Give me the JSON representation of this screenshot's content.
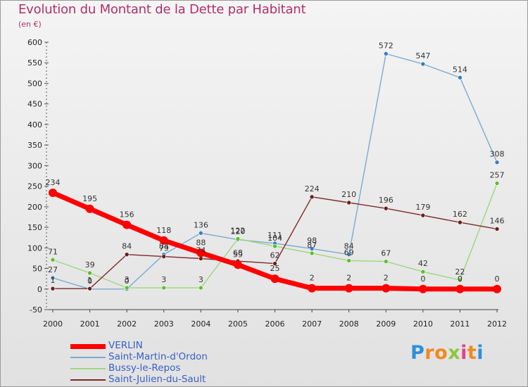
{
  "title": "Evolution du Montant de la Dette par Habitant",
  "unit": "(en €)",
  "logo": {
    "text": "Proxiti",
    "letters": [
      {
        "ch": "P",
        "color": "#2e8fd8"
      },
      {
        "ch": "r",
        "color": "#f08a1e"
      },
      {
        "ch": "o",
        "color": "#f08a1e"
      },
      {
        "ch": "x",
        "color": "#8cc63f"
      },
      {
        "ch": "i",
        "color": "#e83e8c"
      },
      {
        "ch": "t",
        "color": "#f08a1e"
      },
      {
        "ch": "i",
        "color": "#2e8fd8"
      }
    ]
  },
  "chart_data": {
    "type": "line",
    "x": [
      "2000",
      "2001",
      "2002",
      "2003",
      "2004",
      "2005",
      "2006",
      "2007",
      "2008",
      "2009",
      "2010",
      "2011",
      "2012"
    ],
    "ylim": [
      -50,
      600
    ],
    "yticks": [
      "-50",
      "0",
      "50",
      "100",
      "150",
      "200",
      "250",
      "300",
      "350",
      "400",
      "450",
      "500",
      "550",
      "600"
    ],
    "grid": false,
    "legend_position": "bottom-left",
    "series": [
      {
        "name": "VERLIN",
        "color": "#ff0000",
        "point_color": "#ff0000",
        "thick": true,
        "values": [
          234,
          195,
          156,
          118,
          88,
          59,
          25,
          2,
          2,
          2,
          0,
          0,
          0
        ],
        "labels": [
          "234",
          "195",
          "156",
          "118",
          "88",
          "59",
          "25",
          "2",
          "2",
          "2",
          "0",
          "0",
          "0"
        ]
      },
      {
        "name": "Saint-Martin-d'Ordon",
        "color": "#7aaad2",
        "point_color": "#3a7cc0",
        "thick": false,
        "values": [
          27,
          0,
          0,
          84,
          136,
          120,
          111,
          98,
          84,
          572,
          547,
          514,
          308
        ],
        "labels": [
          "27",
          "0",
          "0",
          "84",
          "136",
          "120",
          "111",
          "98",
          "84",
          "572",
          "547",
          "514",
          "308"
        ]
      },
      {
        "name": "Bussy-le-Repos",
        "color": "#9ed67c",
        "point_color": "#5cbf2a",
        "thick": false,
        "values": [
          71,
          39,
          3,
          3,
          3,
          122,
          104,
          87,
          69,
          67,
          42,
          22,
          257
        ],
        "labels": [
          "71",
          "39",
          "3",
          "3",
          "3",
          "122",
          "104",
          "87",
          "69",
          "67",
          "42",
          "22",
          "257"
        ]
      },
      {
        "name": "Saint-Julien-du-Sault",
        "color": "#7c2a2a",
        "point_color": "#6a1e1e",
        "thick": false,
        "values": [
          1,
          1,
          84,
          79,
          74,
          68,
          62,
          224,
          210,
          196,
          179,
          162,
          146
        ],
        "labels": [
          "1",
          "1",
          "84",
          "79",
          "74",
          "68",
          "62",
          "224",
          "210",
          "196",
          "179",
          "162",
          "146"
        ]
      }
    ]
  }
}
